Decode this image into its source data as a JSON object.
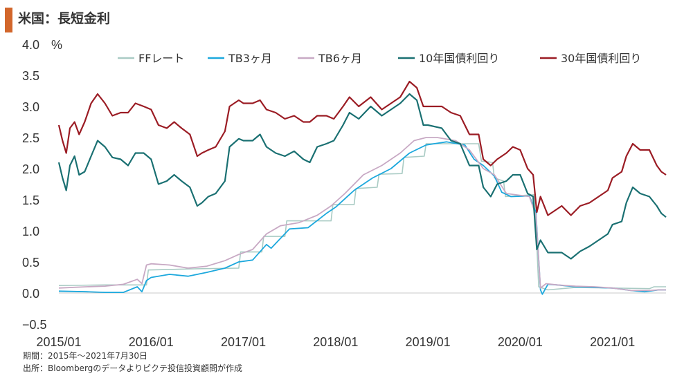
{
  "title": "米国：長短金利",
  "colors": {
    "title_bar": "#d2662b",
    "negative_label": "#cc1f1f"
  },
  "footnote_period": "期間：2015年～2021年7月30日",
  "footnote_source": "出所：Bloombergのデータよりピクテ投信投資顧問が作成",
  "chart_data": {
    "type": "line",
    "title": "米国：長短金利",
    "ylabel": "%",
    "ylim": [
      -0.5,
      4.0
    ],
    "yticks": [
      "4.0",
      "3.5",
      "3.0",
      "2.5",
      "2.0",
      "1.5",
      "1.0",
      "0.5",
      "0.0",
      "−0.5"
    ],
    "xlim": [
      2015.0,
      2021.58
    ],
    "xticks": [
      {
        "x": 2015.0,
        "label": "2015/01"
      },
      {
        "x": 2016.0,
        "label": "2016/01"
      },
      {
        "x": 2017.0,
        "label": "2017/01"
      },
      {
        "x": 2018.0,
        "label": "2018/01"
      },
      {
        "x": 2019.0,
        "label": "2019/01"
      },
      {
        "x": 2020.0,
        "label": "2020/01"
      },
      {
        "x": 2021.0,
        "label": "2021/01"
      }
    ],
    "grid": false,
    "legend_position": "top",
    "series": [
      {
        "name": "FFレート",
        "color": "#a9cbc4",
        "width": 1.6,
        "points": [
          [
            2015.0,
            0.12
          ],
          [
            2015.5,
            0.13
          ],
          [
            2015.95,
            0.13
          ],
          [
            2015.97,
            0.37
          ],
          [
            2016.5,
            0.39
          ],
          [
            2016.95,
            0.4
          ],
          [
            2016.97,
            0.66
          ],
          [
            2017.2,
            0.66
          ],
          [
            2017.22,
            0.91
          ],
          [
            2017.45,
            0.91
          ],
          [
            2017.47,
            1.16
          ],
          [
            2017.95,
            1.16
          ],
          [
            2017.97,
            1.42
          ],
          [
            2018.2,
            1.42
          ],
          [
            2018.22,
            1.68
          ],
          [
            2018.45,
            1.7
          ],
          [
            2018.47,
            1.91
          ],
          [
            2018.72,
            1.92
          ],
          [
            2018.74,
            2.18
          ],
          [
            2018.96,
            2.2
          ],
          [
            2018.98,
            2.4
          ],
          [
            2019.5,
            2.4
          ],
          [
            2019.55,
            2.4
          ],
          [
            2019.58,
            2.12
          ],
          [
            2019.7,
            2.1
          ],
          [
            2019.72,
            1.85
          ],
          [
            2019.82,
            1.8
          ],
          [
            2019.84,
            1.55
          ],
          [
            2020.15,
            1.58
          ],
          [
            2020.17,
            1.1
          ],
          [
            2020.2,
            0.1
          ],
          [
            2020.3,
            0.05
          ],
          [
            2020.6,
            0.09
          ],
          [
            2021.0,
            0.08
          ],
          [
            2021.4,
            0.07
          ],
          [
            2021.45,
            0.1
          ],
          [
            2021.58,
            0.1
          ]
        ]
      },
      {
        "name": "TB3ヶ月",
        "color": "#1ca8dd",
        "width": 1.8,
        "points": [
          [
            2015.0,
            0.03
          ],
          [
            2015.3,
            0.02
          ],
          [
            2015.5,
            0.01
          ],
          [
            2015.7,
            0.01
          ],
          [
            2015.85,
            0.1
          ],
          [
            2015.9,
            0.02
          ],
          [
            2015.95,
            0.2
          ],
          [
            2016.0,
            0.25
          ],
          [
            2016.2,
            0.3
          ],
          [
            2016.4,
            0.27
          ],
          [
            2016.6,
            0.33
          ],
          [
            2016.8,
            0.4
          ],
          [
            2016.95,
            0.5
          ],
          [
            2017.1,
            0.53
          ],
          [
            2017.25,
            0.78
          ],
          [
            2017.3,
            0.72
          ],
          [
            2017.5,
            1.03
          ],
          [
            2017.7,
            1.05
          ],
          [
            2017.9,
            1.28
          ],
          [
            2018.0,
            1.38
          ],
          [
            2018.2,
            1.65
          ],
          [
            2018.4,
            1.85
          ],
          [
            2018.6,
            2.0
          ],
          [
            2018.8,
            2.25
          ],
          [
            2018.98,
            2.38
          ],
          [
            2019.2,
            2.43
          ],
          [
            2019.4,
            2.38
          ],
          [
            2019.5,
            2.15
          ],
          [
            2019.6,
            2.05
          ],
          [
            2019.72,
            1.88
          ],
          [
            2019.8,
            1.62
          ],
          [
            2019.9,
            1.55
          ],
          [
            2020.1,
            1.56
          ],
          [
            2020.17,
            1.3
          ],
          [
            2020.22,
            0.05
          ],
          [
            2020.24,
            -0.02
          ],
          [
            2020.3,
            0.14
          ],
          [
            2020.4,
            0.13
          ],
          [
            2020.6,
            0.1
          ],
          [
            2020.8,
            0.09
          ],
          [
            2021.0,
            0.08
          ],
          [
            2021.2,
            0.04
          ],
          [
            2021.35,
            0.02
          ],
          [
            2021.5,
            0.05
          ],
          [
            2021.58,
            0.05
          ]
        ]
      },
      {
        "name": "TB6ヶ月",
        "color": "#c8a9c4",
        "width": 1.8,
        "points": [
          [
            2015.0,
            0.08
          ],
          [
            2015.3,
            0.1
          ],
          [
            2015.5,
            0.11
          ],
          [
            2015.7,
            0.14
          ],
          [
            2015.85,
            0.22
          ],
          [
            2015.9,
            0.15
          ],
          [
            2015.95,
            0.45
          ],
          [
            2016.0,
            0.47
          ],
          [
            2016.2,
            0.45
          ],
          [
            2016.4,
            0.4
          ],
          [
            2016.6,
            0.43
          ],
          [
            2016.8,
            0.52
          ],
          [
            2016.95,
            0.62
          ],
          [
            2017.1,
            0.7
          ],
          [
            2017.25,
            0.95
          ],
          [
            2017.4,
            1.08
          ],
          [
            2017.6,
            1.13
          ],
          [
            2017.8,
            1.25
          ],
          [
            2017.95,
            1.4
          ],
          [
            2018.1,
            1.6
          ],
          [
            2018.3,
            1.9
          ],
          [
            2018.5,
            2.05
          ],
          [
            2018.7,
            2.25
          ],
          [
            2018.85,
            2.45
          ],
          [
            2018.98,
            2.5
          ],
          [
            2019.1,
            2.5
          ],
          [
            2019.3,
            2.45
          ],
          [
            2019.45,
            2.3
          ],
          [
            2019.6,
            2.0
          ],
          [
            2019.72,
            1.9
          ],
          [
            2019.85,
            1.6
          ],
          [
            2020.1,
            1.55
          ],
          [
            2020.17,
            1.25
          ],
          [
            2020.22,
            0.08
          ],
          [
            2020.28,
            0.15
          ],
          [
            2020.4,
            0.13
          ],
          [
            2020.6,
            0.11
          ],
          [
            2020.8,
            0.1
          ],
          [
            2021.0,
            0.08
          ],
          [
            2021.2,
            0.04
          ],
          [
            2021.4,
            0.04
          ],
          [
            2021.5,
            0.05
          ],
          [
            2021.58,
            0.05
          ]
        ]
      },
      {
        "name": "10年国債利回り",
        "color": "#1a7072",
        "width": 2.2,
        "points": [
          [
            2015.0,
            2.1
          ],
          [
            2015.04,
            1.85
          ],
          [
            2015.08,
            1.65
          ],
          [
            2015.12,
            2.05
          ],
          [
            2015.17,
            2.2
          ],
          [
            2015.22,
            1.9
          ],
          [
            2015.28,
            1.95
          ],
          [
            2015.35,
            2.2
          ],
          [
            2015.42,
            2.45
          ],
          [
            2015.5,
            2.35
          ],
          [
            2015.58,
            2.18
          ],
          [
            2015.67,
            2.15
          ],
          [
            2015.75,
            2.05
          ],
          [
            2015.83,
            2.25
          ],
          [
            2015.92,
            2.25
          ],
          [
            2016.0,
            2.15
          ],
          [
            2016.08,
            1.75
          ],
          [
            2016.17,
            1.8
          ],
          [
            2016.25,
            1.9
          ],
          [
            2016.33,
            1.8
          ],
          [
            2016.42,
            1.7
          ],
          [
            2016.5,
            1.4
          ],
          [
            2016.55,
            1.45
          ],
          [
            2016.62,
            1.55
          ],
          [
            2016.7,
            1.6
          ],
          [
            2016.8,
            1.8
          ],
          [
            2016.85,
            2.35
          ],
          [
            2016.95,
            2.48
          ],
          [
            2017.0,
            2.45
          ],
          [
            2017.1,
            2.45
          ],
          [
            2017.18,
            2.55
          ],
          [
            2017.25,
            2.35
          ],
          [
            2017.35,
            2.25
          ],
          [
            2017.45,
            2.2
          ],
          [
            2017.55,
            2.28
          ],
          [
            2017.65,
            2.15
          ],
          [
            2017.72,
            2.1
          ],
          [
            2017.8,
            2.35
          ],
          [
            2017.9,
            2.4
          ],
          [
            2017.98,
            2.45
          ],
          [
            2018.08,
            2.7
          ],
          [
            2018.15,
            2.9
          ],
          [
            2018.25,
            2.8
          ],
          [
            2018.38,
            3.0
          ],
          [
            2018.5,
            2.85
          ],
          [
            2018.6,
            2.95
          ],
          [
            2018.7,
            3.05
          ],
          [
            2018.8,
            3.2
          ],
          [
            2018.88,
            3.1
          ],
          [
            2018.95,
            2.7
          ],
          [
            2019.0,
            2.7
          ],
          [
            2019.15,
            2.65
          ],
          [
            2019.25,
            2.45
          ],
          [
            2019.35,
            2.4
          ],
          [
            2019.45,
            2.05
          ],
          [
            2019.55,
            2.05
          ],
          [
            2019.6,
            1.7
          ],
          [
            2019.68,
            1.55
          ],
          [
            2019.75,
            1.75
          ],
          [
            2019.85,
            1.8
          ],
          [
            2019.92,
            1.9
          ],
          [
            2020.0,
            1.9
          ],
          [
            2020.08,
            1.6
          ],
          [
            2020.14,
            1.55
          ],
          [
            2020.18,
            0.7
          ],
          [
            2020.22,
            0.85
          ],
          [
            2020.3,
            0.65
          ],
          [
            2020.45,
            0.65
          ],
          [
            2020.55,
            0.55
          ],
          [
            2020.65,
            0.67
          ],
          [
            2020.75,
            0.75
          ],
          [
            2020.85,
            0.85
          ],
          [
            2020.95,
            0.95
          ],
          [
            2021.0,
            1.1
          ],
          [
            2021.1,
            1.15
          ],
          [
            2021.15,
            1.45
          ],
          [
            2021.22,
            1.7
          ],
          [
            2021.3,
            1.6
          ],
          [
            2021.4,
            1.55
          ],
          [
            2021.48,
            1.4
          ],
          [
            2021.53,
            1.28
          ],
          [
            2021.58,
            1.22
          ]
        ]
      },
      {
        "name": "30年国債利回り",
        "color": "#9b1c24",
        "width": 2.2,
        "points": [
          [
            2015.0,
            2.7
          ],
          [
            2015.04,
            2.45
          ],
          [
            2015.08,
            2.25
          ],
          [
            2015.12,
            2.65
          ],
          [
            2015.17,
            2.75
          ],
          [
            2015.22,
            2.55
          ],
          [
            2015.28,
            2.75
          ],
          [
            2015.35,
            3.05
          ],
          [
            2015.42,
            3.2
          ],
          [
            2015.5,
            3.05
          ],
          [
            2015.58,
            2.85
          ],
          [
            2015.67,
            2.9
          ],
          [
            2015.75,
            2.9
          ],
          [
            2015.83,
            3.05
          ],
          [
            2015.92,
            3.0
          ],
          [
            2016.0,
            2.95
          ],
          [
            2016.08,
            2.7
          ],
          [
            2016.17,
            2.65
          ],
          [
            2016.25,
            2.75
          ],
          [
            2016.33,
            2.65
          ],
          [
            2016.42,
            2.55
          ],
          [
            2016.5,
            2.2
          ],
          [
            2016.55,
            2.25
          ],
          [
            2016.62,
            2.3
          ],
          [
            2016.7,
            2.35
          ],
          [
            2016.8,
            2.6
          ],
          [
            2016.85,
            3.0
          ],
          [
            2016.95,
            3.1
          ],
          [
            2017.0,
            3.05
          ],
          [
            2017.1,
            3.05
          ],
          [
            2017.18,
            3.1
          ],
          [
            2017.25,
            2.95
          ],
          [
            2017.35,
            2.9
          ],
          [
            2017.45,
            2.8
          ],
          [
            2017.55,
            2.85
          ],
          [
            2017.65,
            2.75
          ],
          [
            2017.72,
            2.75
          ],
          [
            2017.8,
            2.85
          ],
          [
            2017.9,
            2.85
          ],
          [
            2017.98,
            2.8
          ],
          [
            2018.08,
            3.0
          ],
          [
            2018.15,
            3.15
          ],
          [
            2018.25,
            3.0
          ],
          [
            2018.38,
            3.15
          ],
          [
            2018.5,
            2.95
          ],
          [
            2018.6,
            3.05
          ],
          [
            2018.7,
            3.15
          ],
          [
            2018.8,
            3.4
          ],
          [
            2018.88,
            3.3
          ],
          [
            2018.95,
            3.0
          ],
          [
            2019.0,
            3.0
          ],
          [
            2019.15,
            3.0
          ],
          [
            2019.25,
            2.9
          ],
          [
            2019.35,
            2.85
          ],
          [
            2019.45,
            2.55
          ],
          [
            2019.55,
            2.55
          ],
          [
            2019.6,
            2.15
          ],
          [
            2019.68,
            2.05
          ],
          [
            2019.75,
            2.15
          ],
          [
            2019.85,
            2.25
          ],
          [
            2019.92,
            2.35
          ],
          [
            2020.0,
            2.3
          ],
          [
            2020.08,
            2.0
          ],
          [
            2020.14,
            1.9
          ],
          [
            2020.18,
            1.3
          ],
          [
            2020.22,
            1.55
          ],
          [
            2020.3,
            1.25
          ],
          [
            2020.45,
            1.4
          ],
          [
            2020.55,
            1.25
          ],
          [
            2020.65,
            1.4
          ],
          [
            2020.75,
            1.45
          ],
          [
            2020.85,
            1.55
          ],
          [
            2020.95,
            1.65
          ],
          [
            2021.0,
            1.85
          ],
          [
            2021.1,
            1.95
          ],
          [
            2021.15,
            2.2
          ],
          [
            2021.22,
            2.4
          ],
          [
            2021.3,
            2.3
          ],
          [
            2021.4,
            2.3
          ],
          [
            2021.48,
            2.05
          ],
          [
            2021.53,
            1.95
          ],
          [
            2021.58,
            1.9
          ]
        ]
      }
    ]
  }
}
